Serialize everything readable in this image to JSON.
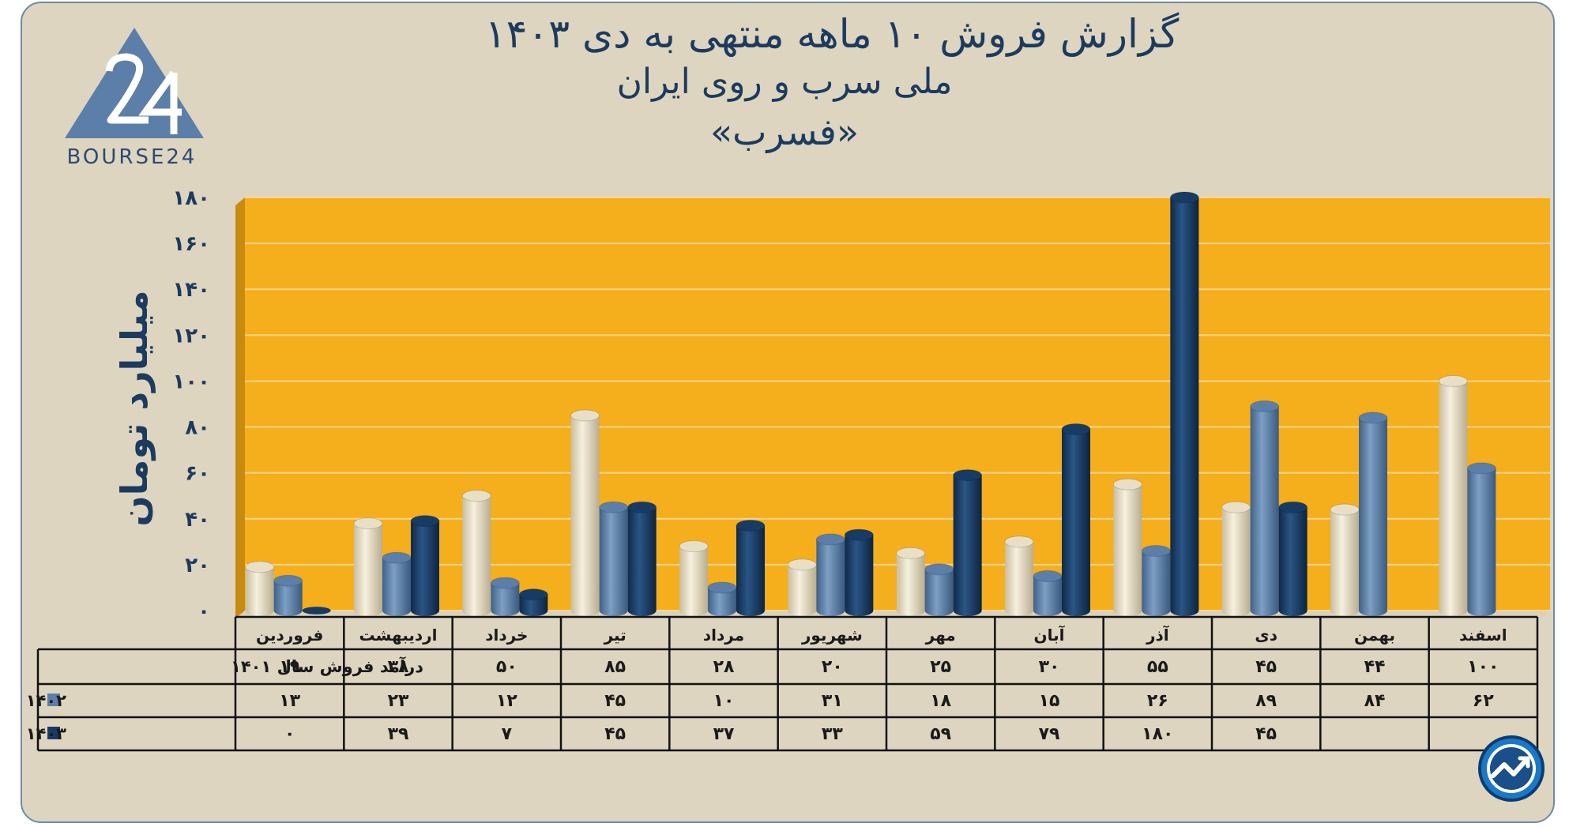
{
  "header": {
    "title_line1": "گزارش  فروش ۱۰ ماهه منتهی به دی ۱۴۰۳",
    "title_line2": "ملی سرب و روی ایران",
    "title_line3": "«فسرب»"
  },
  "logo": {
    "text": "BOURSE24",
    "icon": "bourse24-triangle-logo"
  },
  "corner_icon": "trend-arrow-icon",
  "colors": {
    "background": "#ddd5c0",
    "plot_area": "#f5ae1c",
    "series_1401": "#e8dfc6",
    "series_1402": "#5b7fa8",
    "series_1403": "#183b63",
    "text": "#1c3b5e"
  },
  "chart_data": {
    "type": "bar",
    "ylabel": "میلیارد تومان",
    "ylim": [
      0,
      180
    ],
    "yticks": [
      "۰",
      "۲۰",
      "۴۰",
      "۶۰",
      "۸۰",
      "۱۰۰",
      "۱۲۰",
      "۱۴۰",
      "۱۶۰",
      "۱۸۰"
    ],
    "grid": true,
    "categories": [
      "فروردین",
      "اردیبهشت",
      "خرداد",
      "تیر",
      "مرداد",
      "شهریور",
      "مهر",
      "آبان",
      "آذر",
      "دی",
      "بهمن",
      "اسفند"
    ],
    "series": [
      {
        "name": "درآمد فروش سال ۱۴۰۱",
        "values": [
          19,
          38,
          50,
          85,
          28,
          20,
          25,
          30,
          55,
          45,
          44,
          100
        ],
        "labels": [
          "۱۹",
          "۳۸",
          "۵۰",
          "۸۵",
          "۲۸",
          "۲۰",
          "۲۵",
          "۳۰",
          "۵۵",
          "۴۵",
          "۴۴",
          "۱۰۰"
        ]
      },
      {
        "name": "۱۴۰۲",
        "values": [
          13,
          23,
          12,
          45,
          10,
          31,
          18,
          15,
          26,
          89,
          84,
          62
        ],
        "labels": [
          "۱۳",
          "۲۳",
          "۱۲",
          "۴۵",
          "۱۰",
          "۳۱",
          "۱۸",
          "۱۵",
          "۲۶",
          "۸۹",
          "۸۴",
          "۶۲"
        ]
      },
      {
        "name": "۱۴۰۳",
        "values": [
          0,
          39,
          7,
          45,
          37,
          33,
          59,
          79,
          180,
          45,
          null,
          null
        ],
        "labels": [
          "۰",
          "۳۹",
          "۷",
          "۴۵",
          "۳۷",
          "۳۳",
          "۵۹",
          "۷۹",
          "۱۸۰",
          "۴۵",
          "",
          ""
        ]
      }
    ]
  }
}
